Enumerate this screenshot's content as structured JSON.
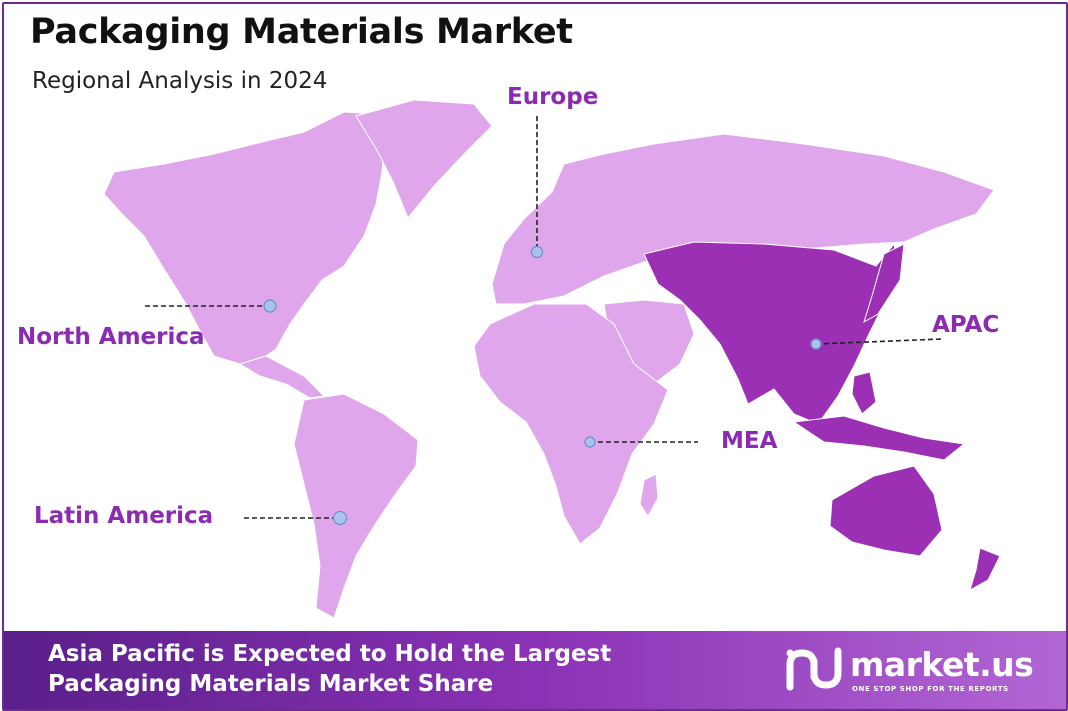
{
  "title": "Packaging Materials Market",
  "subtitle": "Regional Analysis in 2024",
  "colors": {
    "land": "#dfa6ec",
    "highlight": "#9b30b4",
    "label": "#8a2bb2",
    "marker": "#a9c3ee",
    "footer_start": "#5a1f8a",
    "footer_end": "#b266d4"
  },
  "regions": {
    "europe": {
      "name": "Europe"
    },
    "north_america": {
      "name": "North America"
    },
    "apac": {
      "name": "APAC",
      "highlighted": true
    },
    "mea": {
      "name": "MEA"
    },
    "latin_america": {
      "name": "Latin America"
    }
  },
  "footer": {
    "line1": "Asia Pacific is Expected to Hold the Largest",
    "line2": "Packaging Materials Market Share"
  },
  "brand": {
    "name": "market.us",
    "tagline": "ONE STOP SHOP FOR THE REPORTS",
    "logo_icon": "market-us-logo-icon"
  }
}
